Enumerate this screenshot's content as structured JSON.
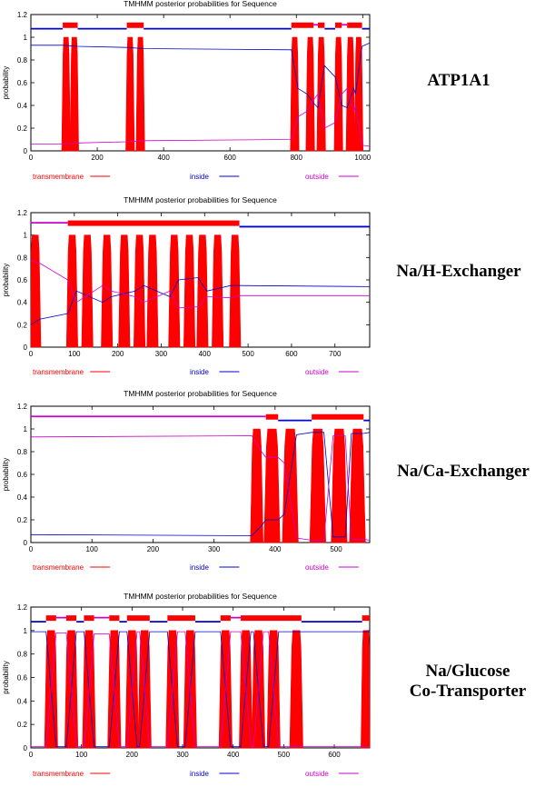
{
  "chart_data": [
    {
      "type": "line",
      "title": "TMHMM posterior probabilities for Sequence",
      "panel_label": "ATP1A1",
      "ylabel": "probability",
      "xlim": [
        0,
        1021
      ],
      "ylim": [
        0,
        1.2
      ],
      "xticks": [
        0,
        200,
        400,
        600,
        800,
        1000
      ],
      "yticks": [
        0,
        0.2,
        0.4,
        0.6,
        0.8,
        1,
        1.2
      ],
      "legend": [
        "transmembrane",
        "inside",
        "outside"
      ],
      "colors": {
        "transmembrane": "#ff0000",
        "inside": "#0000cc",
        "outside": "#cc00cc"
      },
      "transmembrane_segments": [
        [
          96,
          116
        ],
        [
          121,
          141
        ],
        [
          289,
          309
        ],
        [
          320,
          340
        ],
        [
          785,
          805
        ],
        [
          832,
          852
        ],
        [
          865,
          885
        ],
        [
          917,
          937
        ],
        [
          953,
          973
        ],
        [
          978,
          998
        ]
      ],
      "inside_level_x": [
        0,
        96,
        141,
        289,
        340,
        785,
        805,
        832,
        852,
        865,
        885,
        917,
        937,
        953,
        973,
        978,
        998,
        1021
      ],
      "inside_level_y": [
        0.93,
        0.93,
        0.92,
        0.91,
        0.9,
        0.89,
        0.55,
        0.5,
        0.42,
        0.38,
        0.75,
        0.65,
        0.4,
        0.38,
        0.55,
        0.5,
        0.92,
        0.95
      ],
      "outside_level_x": [
        0,
        96,
        141,
        289,
        340,
        785,
        805,
        832,
        852,
        865,
        885,
        917,
        937,
        953,
        973,
        978,
        998,
        1021
      ],
      "outside_level_y": [
        0.06,
        0.06,
        0.07,
        0.08,
        0.09,
        0.1,
        0.3,
        0.35,
        0.45,
        0.5,
        0.2,
        0.25,
        0.5,
        0.55,
        0.35,
        0.4,
        0.05,
        0.04
      ],
      "topology": [
        {
          "state": "inside",
          "from": 0,
          "to": 96
        },
        {
          "state": "tm",
          "from": 96,
          "to": 141
        },
        {
          "state": "inside",
          "from": 141,
          "to": 289
        },
        {
          "state": "tm",
          "from": 289,
          "to": 340
        },
        {
          "state": "inside",
          "from": 340,
          "to": 785
        },
        {
          "state": "tm",
          "from": 785,
          "to": 852
        },
        {
          "state": "outside",
          "from": 852,
          "to": 865
        },
        {
          "state": "tm",
          "from": 865,
          "to": 885
        },
        {
          "state": "inside",
          "from": 885,
          "to": 917
        },
        {
          "state": "tm",
          "from": 917,
          "to": 937
        },
        {
          "state": "outside",
          "from": 937,
          "to": 953
        },
        {
          "state": "tm",
          "from": 953,
          "to": 998
        },
        {
          "state": "inside",
          "from": 998,
          "to": 1021
        }
      ]
    },
    {
      "type": "line",
      "title": "TMHMM posterior probabilities for Sequence",
      "panel_label": "Na/H-Exchanger",
      "ylabel": "probability",
      "xlim": [
        0,
        780
      ],
      "ylim": [
        0,
        1.2
      ],
      "xticks": [
        0,
        100,
        200,
        300,
        400,
        500,
        600,
        700
      ],
      "yticks": [
        0,
        0.2,
        0.4,
        0.6,
        0.8,
        1,
        1.2
      ],
      "legend": [
        "transmembrane",
        "inside",
        "outside"
      ],
      "colors": {
        "transmembrane": "#ff0000",
        "inside": "#0000cc",
        "outside": "#cc00cc"
      },
      "transmembrane_segments": [
        [
          0,
          20
        ],
        [
          85,
          105
        ],
        [
          120,
          140
        ],
        [
          165,
          185
        ],
        [
          205,
          225
        ],
        [
          240,
          260
        ],
        [
          270,
          290
        ],
        [
          320,
          340
        ],
        [
          355,
          375
        ],
        [
          385,
          405
        ],
        [
          420,
          440
        ],
        [
          460,
          480
        ]
      ],
      "inside_level_x": [
        0,
        20,
        85,
        105,
        165,
        185,
        240,
        260,
        320,
        340,
        385,
        405,
        460,
        480,
        780
      ],
      "inside_level_y": [
        0.2,
        0.25,
        0.3,
        0.5,
        0.4,
        0.45,
        0.5,
        0.55,
        0.45,
        0.6,
        0.62,
        0.5,
        0.55,
        0.55,
        0.54
      ],
      "outside_level_x": [
        0,
        20,
        85,
        105,
        165,
        185,
        240,
        260,
        320,
        340,
        385,
        405,
        460,
        480,
        780
      ],
      "outside_level_y": [
        0.77,
        0.75,
        0.6,
        0.4,
        0.55,
        0.5,
        0.45,
        0.4,
        0.5,
        0.35,
        0.36,
        0.45,
        0.44,
        0.46,
        0.46
      ],
      "topology": [
        {
          "state": "outside",
          "from": 0,
          "to": 85
        },
        {
          "state": "tm",
          "from": 85,
          "to": 480
        },
        {
          "state": "inside",
          "from": 480,
          "to": 780
        }
      ]
    },
    {
      "type": "line",
      "title": "TMHMM posterior probabilities for Sequence",
      "panel_label": "Na/Ca-Exchanger",
      "ylabel": "probability",
      "xlim": [
        0,
        555
      ],
      "ylim": [
        0,
        1.2
      ],
      "xticks": [
        0,
        100,
        200,
        300,
        400,
        500
      ],
      "yticks": [
        0,
        0.2,
        0.4,
        0.6,
        0.8,
        1,
        1.2
      ],
      "legend": [
        "transmembrane",
        "inside",
        "outside"
      ],
      "colors": {
        "transmembrane": "#ff0000",
        "inside": "#0000cc",
        "outside": "#cc00cc"
      },
      "transmembrane_segments": [
        [
          362,
          378
        ],
        [
          385,
          405
        ],
        [
          415,
          435
        ],
        [
          460,
          480
        ],
        [
          495,
          515
        ],
        [
          525,
          545
        ]
      ],
      "inside_level_x": [
        0,
        362,
        378,
        385,
        405,
        415,
        435,
        460,
        480,
        495,
        515,
        525,
        545,
        555
      ],
      "inside_level_y": [
        0.07,
        0.06,
        0.15,
        0.2,
        0.2,
        0.25,
        0.95,
        0.97,
        0.97,
        0.05,
        0.05,
        0.96,
        0.96,
        0.97
      ],
      "outside_level_x": [
        0,
        362,
        378,
        385,
        405,
        415,
        435,
        460,
        480,
        495,
        515,
        525,
        545,
        555
      ],
      "outside_level_y": [
        0.93,
        0.94,
        0.8,
        0.75,
        0.75,
        0.7,
        0.04,
        0.02,
        0.02,
        0.94,
        0.94,
        0.03,
        0.03,
        0.02
      ],
      "topology": [
        {
          "state": "outside",
          "from": 0,
          "to": 385
        },
        {
          "state": "tm",
          "from": 385,
          "to": 405
        },
        {
          "state": "inside",
          "from": 405,
          "to": 460
        },
        {
          "state": "tm",
          "from": 460,
          "to": 545
        },
        {
          "state": "inside",
          "from": 545,
          "to": 555
        }
      ]
    },
    {
      "type": "line",
      "title": "TMHMM posterior probabilities for Sequence",
      "panel_label": "Na/Glucose\nCo-Transporter",
      "ylabel": "probability",
      "xlim": [
        0,
        670
      ],
      "ylim": [
        0,
        1.2
      ],
      "xticks": [
        0,
        100,
        200,
        300,
        400,
        500,
        600
      ],
      "yticks": [
        0,
        0.2,
        0.4,
        0.6,
        0.8,
        1,
        1.2
      ],
      "legend": [
        "transmembrane",
        "inside",
        "outside"
      ],
      "colors": {
        "transmembrane": "#ff0000",
        "inside": "#0000cc",
        "outside": "#cc00cc"
      },
      "transmembrane_segments": [
        [
          30,
          50
        ],
        [
          70,
          90
        ],
        [
          105,
          125
        ],
        [
          155,
          175
        ],
        [
          190,
          210
        ],
        [
          215,
          235
        ],
        [
          270,
          290
        ],
        [
          305,
          325
        ],
        [
          375,
          395
        ],
        [
          415,
          435
        ],
        [
          440,
          460
        ],
        [
          470,
          490
        ],
        [
          515,
          535
        ],
        [
          655,
          670
        ]
      ],
      "inside_level_x": [
        0,
        30,
        50,
        70,
        90,
        105,
        125,
        155,
        175,
        190,
        210,
        215,
        235,
        270,
        290,
        305,
        325,
        375,
        395,
        415,
        435,
        440,
        460,
        470,
        490,
        515,
        535,
        655,
        670
      ],
      "inside_level_y": [
        0.99,
        0.99,
        0.01,
        0.01,
        0.99,
        0.99,
        0.01,
        0.01,
        0.99,
        0.99,
        0.01,
        0.01,
        0.99,
        0.99,
        0.01,
        0.01,
        0.99,
        0.99,
        0.01,
        0.01,
        0.99,
        0.99,
        0.01,
        0.01,
        0.99,
        0.99,
        0.99,
        0.99,
        0.99
      ],
      "outside_level_x": [
        0,
        30,
        50,
        70,
        90,
        105,
        125,
        155,
        175,
        190,
        210,
        215,
        235,
        270,
        290,
        305,
        325,
        375,
        395,
        415,
        435,
        440,
        460,
        470,
        490,
        515,
        535,
        655,
        670
      ],
      "outside_level_y": [
        0.01,
        0.01,
        0.98,
        0.98,
        0.01,
        0.01,
        0.97,
        0.97,
        0.01,
        0.01,
        0.99,
        0.99,
        0.01,
        0.01,
        0.99,
        0.99,
        0.01,
        0.01,
        0.99,
        0.99,
        0.01,
        0.01,
        0.99,
        0.99,
        0.01,
        0.01,
        0.01,
        0.01,
        0.01
      ],
      "topology": [
        {
          "state": "inside",
          "from": 0,
          "to": 30
        },
        {
          "state": "tm",
          "from": 30,
          "to": 50
        },
        {
          "state": "outside",
          "from": 50,
          "to": 70
        },
        {
          "state": "tm",
          "from": 70,
          "to": 90
        },
        {
          "state": "inside",
          "from": 90,
          "to": 105
        },
        {
          "state": "tm",
          "from": 105,
          "to": 125
        },
        {
          "state": "outside",
          "from": 125,
          "to": 155
        },
        {
          "state": "tm",
          "from": 155,
          "to": 175
        },
        {
          "state": "inside",
          "from": 175,
          "to": 190
        },
        {
          "state": "tm",
          "from": 190,
          "to": 235
        },
        {
          "state": "inside",
          "from": 235,
          "to": 270
        },
        {
          "state": "tm",
          "from": 270,
          "to": 325
        },
        {
          "state": "inside",
          "from": 325,
          "to": 375
        },
        {
          "state": "tm",
          "from": 375,
          "to": 395
        },
        {
          "state": "outside",
          "from": 395,
          "to": 415
        },
        {
          "state": "tm",
          "from": 415,
          "to": 535
        },
        {
          "state": "inside",
          "from": 535,
          "to": 655
        },
        {
          "state": "tm",
          "from": 655,
          "to": 670
        }
      ]
    }
  ]
}
